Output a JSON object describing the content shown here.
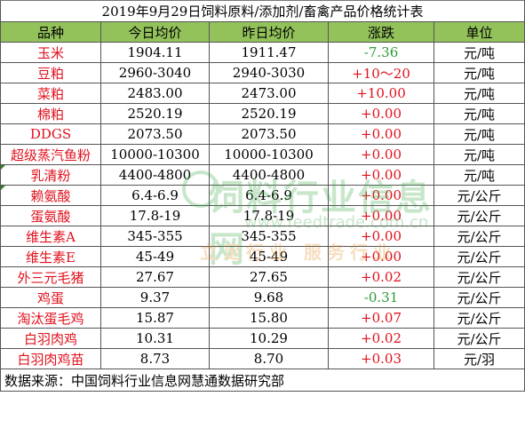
{
  "title": "2019年9月29日饲料原料/添加剂/畜禽产品价格统计表",
  "headers": [
    "品种",
    "今日均价",
    "昨日均价",
    "涨跌",
    "单位"
  ],
  "rows": [
    {
      "name": "玉米",
      "today": "1904.11",
      "yesterday": "1911.47",
      "change": "-7.36",
      "unit": "元/吨",
      "dir": "down"
    },
    {
      "name": "豆粕",
      "today": "2960-3040",
      "yesterday": "2940-3030",
      "change": "+10～20",
      "unit": "元/吨",
      "dir": "up"
    },
    {
      "name": "菜粕",
      "today": "2483.00",
      "yesterday": "2473.00",
      "change": "+10.00",
      "unit": "元/吨",
      "dir": "up"
    },
    {
      "name": "棉粕",
      "today": "2520.19",
      "yesterday": "2520.19",
      "change": "+0.00",
      "unit": "元/吨",
      "dir": "up"
    },
    {
      "name": "DDGS",
      "today": "2073.50",
      "yesterday": "2073.50",
      "change": "+0.00",
      "unit": "元/吨",
      "dir": "up"
    },
    {
      "name": "超级蒸汽鱼粉",
      "today": "10000-10300",
      "yesterday": "10000-10300",
      "change": "+0.00",
      "unit": "元/吨",
      "dir": "up"
    },
    {
      "name": "乳清粉",
      "today": "4400-4800",
      "yesterday": "4400-4800",
      "change": "+0.00",
      "unit": "元/吨",
      "dir": "up"
    },
    {
      "name": "赖氨酸",
      "today": "6.4-6.9",
      "yesterday": "6.4-6.9",
      "change": "+0.00",
      "unit": "元/公斤",
      "dir": "up"
    },
    {
      "name": "蛋氨酸",
      "today": "17.8-19",
      "yesterday": "17.8-19",
      "change": "+0.00",
      "unit": "元/公斤",
      "dir": "up"
    },
    {
      "name": "维生素A",
      "today": "345-355",
      "yesterday": "345-355",
      "change": "+0.00",
      "unit": "元/公斤",
      "dir": "up"
    },
    {
      "name": "维生素E",
      "today": "45-49",
      "yesterday": "45-49",
      "change": "+0.00",
      "unit": "元/公斤",
      "dir": "up"
    },
    {
      "name": "外三元毛猪",
      "today": "27.67",
      "yesterday": "27.65",
      "change": "+0.02",
      "unit": "元/公斤",
      "dir": "up"
    },
    {
      "name": "鸡蛋",
      "today": "9.37",
      "yesterday": "9.68",
      "change": "-0.31",
      "unit": "元/公斤",
      "dir": "down"
    },
    {
      "name": "淘汰蛋毛鸡",
      "today": "15.87",
      "yesterday": "15.80",
      "change": "+0.07",
      "unit": "元/公斤",
      "dir": "up"
    },
    {
      "name": "白羽肉鸡",
      "today": "10.31",
      "yesterday": "10.29",
      "change": "+0.02",
      "unit": "元/公斤",
      "dir": "up"
    },
    {
      "name": "白羽肉鸡苗",
      "today": "8.73",
      "yesterday": "8.70",
      "change": "+0.03",
      "unit": "元/羽",
      "dir": "up"
    }
  ],
  "footer": "数据来源：中国饲料行业信息网慧通数据研究部",
  "watermark": {
    "text": "饲料行业信息网",
    "url": "www.feedtrade.com.cn",
    "slogan": "立足行业 服务行业"
  },
  "colors": {
    "header_bg": "#93c25b",
    "name": "#e0101c",
    "up": "#e0101c",
    "down": "#2a9b35"
  }
}
